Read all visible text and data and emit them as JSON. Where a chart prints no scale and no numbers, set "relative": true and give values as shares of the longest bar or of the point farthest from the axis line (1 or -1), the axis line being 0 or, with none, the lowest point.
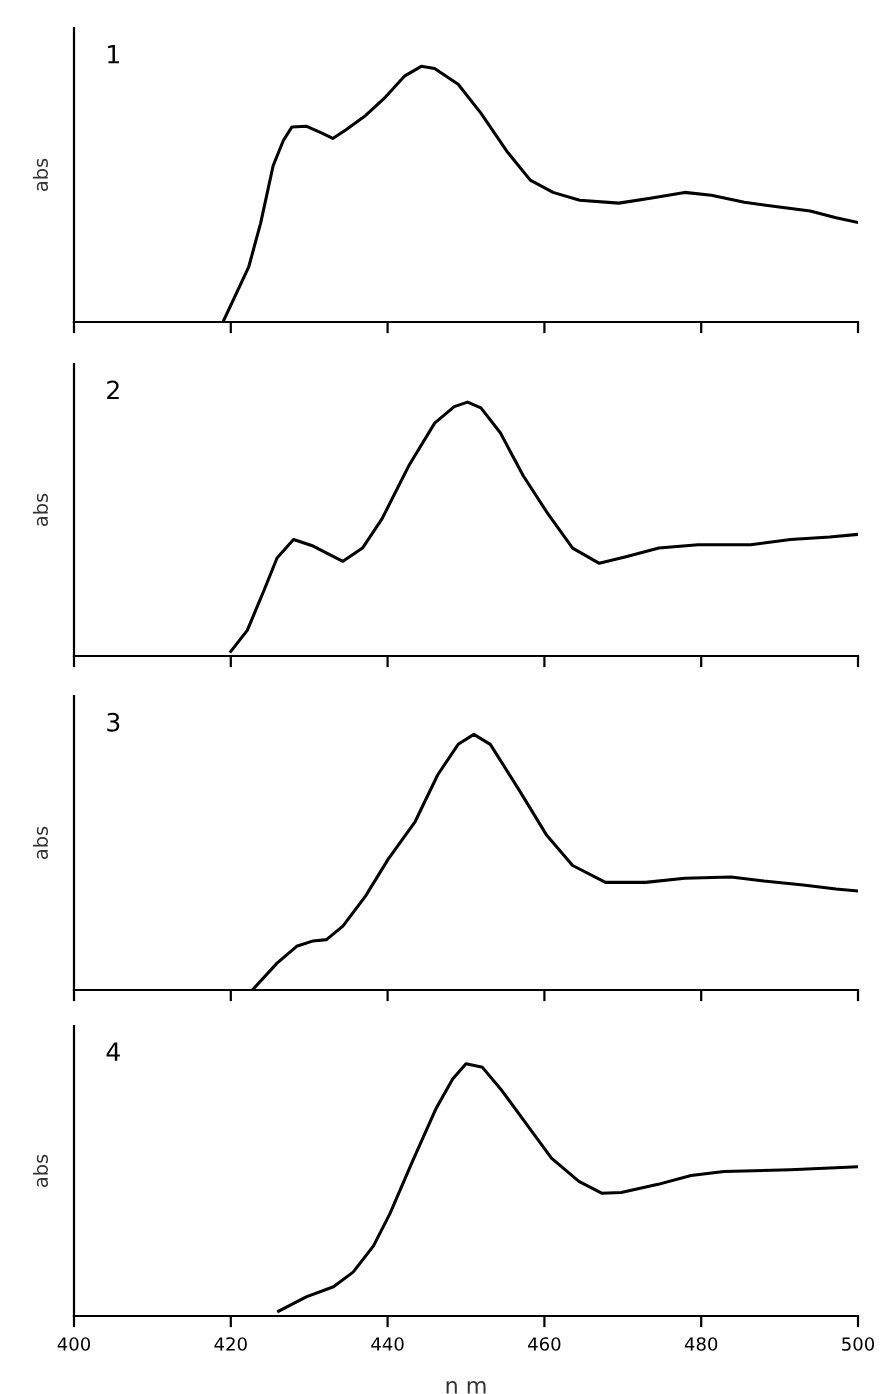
{
  "chart_data": [
    {
      "type": "line",
      "relative": true,
      "ylabel": "abs",
      "annotations": [
        "1"
      ],
      "xlim": [
        400,
        500
      ],
      "tick_labels": false,
      "grid": false,
      "legend": false,
      "xticks": [
        {
          "value": 400,
          "label": null
        },
        {
          "value": 420,
          "label": null
        },
        {
          "value": 440,
          "label": null
        },
        {
          "value": 460,
          "label": null
        },
        {
          "value": 480,
          "label": null
        },
        {
          "value": 500,
          "label": null
        }
      ],
      "series": [
        {
          "color": "#000000",
          "x": [
            419.0,
            420.8,
            422.3,
            423.8,
            425.4,
            426.7,
            427.8,
            429.6,
            431.7,
            433.0,
            434.7,
            437.2,
            439.7,
            442.2,
            444.3,
            446.0,
            449.0,
            451.9,
            455.2,
            458.2,
            461.1,
            464.5,
            469.5,
            473.7,
            477.9,
            481.3,
            485.5,
            489.7,
            493.9,
            497.2,
            500
          ],
          "values": [
            0,
            0.118,
            0.217,
            0.386,
            0.611,
            0.71,
            0.763,
            0.766,
            0.738,
            0.718,
            0.752,
            0.808,
            0.879,
            0.963,
            1.0,
            0.992,
            0.93,
            0.817,
            0.668,
            0.555,
            0.507,
            0.476,
            0.465,
            0.485,
            0.507,
            0.496,
            0.468,
            0.451,
            0.434,
            0.408,
            0.389
          ]
        }
      ]
    },
    {
      "type": "line",
      "relative": true,
      "ylabel": "abs",
      "annotations": [
        "2"
      ],
      "xlim": [
        400,
        500
      ],
      "tick_labels": false,
      "grid": false,
      "legend": false,
      "xticks": [
        {
          "value": 400,
          "label": null
        },
        {
          "value": 420,
          "label": null
        },
        {
          "value": 440,
          "label": null
        },
        {
          "value": 460,
          "label": null
        },
        {
          "value": 480,
          "label": null
        },
        {
          "value": 500,
          "label": null
        }
      ],
      "series": [
        {
          "color": "#000000",
          "x": [
            420.0,
            422.1,
            424.2,
            425.9,
            428.0,
            430.5,
            434.3,
            436.8,
            439.3,
            442.7,
            446.0,
            448.5,
            450.2,
            451.9,
            454.4,
            457.3,
            460.3,
            463.6,
            467.0,
            470.4,
            474.6,
            479.6,
            486.3,
            491.4,
            496.4,
            500
          ],
          "values": [
            0.018,
            0.101,
            0.256,
            0.386,
            0.459,
            0.433,
            0.373,
            0.425,
            0.541,
            0.749,
            0.917,
            0.982,
            1.0,
            0.977,
            0.878,
            0.71,
            0.567,
            0.425,
            0.365,
            0.391,
            0.425,
            0.438,
            0.438,
            0.459,
            0.469,
            0.479
          ]
        }
      ]
    },
    {
      "type": "line",
      "relative": true,
      "ylabel": "abs",
      "annotations": [
        "3"
      ],
      "xlim": [
        400,
        500
      ],
      "tick_labels": false,
      "grid": false,
      "legend": false,
      "xticks": [
        {
          "value": 400,
          "label": null
        },
        {
          "value": 420,
          "label": null
        },
        {
          "value": 440,
          "label": null
        },
        {
          "value": 460,
          "label": null
        },
        {
          "value": 480,
          "label": null
        },
        {
          "value": 500,
          "label": null
        }
      ],
      "series": [
        {
          "color": "#000000",
          "x": [
            422.9,
            425.9,
            428.4,
            430.5,
            432.2,
            434.3,
            437.2,
            440.1,
            443.5,
            446.4,
            449.0,
            451.0,
            453.1,
            456.9,
            460.3,
            463.6,
            467.8,
            472.9,
            477.9,
            483.8,
            488.0,
            493.0,
            497.2,
            500
          ],
          "values": [
            0.005,
            0.105,
            0.171,
            0.192,
            0.197,
            0.25,
            0.368,
            0.513,
            0.658,
            0.842,
            0.961,
            1.0,
            0.961,
            0.776,
            0.605,
            0.487,
            0.421,
            0.421,
            0.437,
            0.442,
            0.426,
            0.411,
            0.395,
            0.387
          ]
        }
      ]
    },
    {
      "type": "line",
      "relative": true,
      "ylabel": "abs",
      "xlabel": "n m",
      "annotations": [
        "4"
      ],
      "xlim": [
        400,
        500
      ],
      "tick_labels": "x",
      "grid": false,
      "legend": false,
      "xticks": [
        400,
        420,
        440,
        460,
        480,
        500
      ],
      "series": [
        {
          "color": "#000000",
          "x": [
            426.1,
            429.7,
            433.1,
            435.6,
            438.2,
            440.3,
            443.2,
            446.2,
            448.3,
            450.0,
            452.1,
            454.6,
            457.6,
            460.9,
            464.4,
            467.3,
            469.8,
            474.5,
            478.7,
            482.9,
            491.4,
            500
          ],
          "values": [
            0.019,
            0.077,
            0.116,
            0.174,
            0.278,
            0.406,
            0.615,
            0.824,
            0.94,
            1.0,
            0.986,
            0.893,
            0.766,
            0.626,
            0.534,
            0.487,
            0.49,
            0.522,
            0.557,
            0.573,
            0.58,
            0.592
          ]
        }
      ]
    }
  ]
}
